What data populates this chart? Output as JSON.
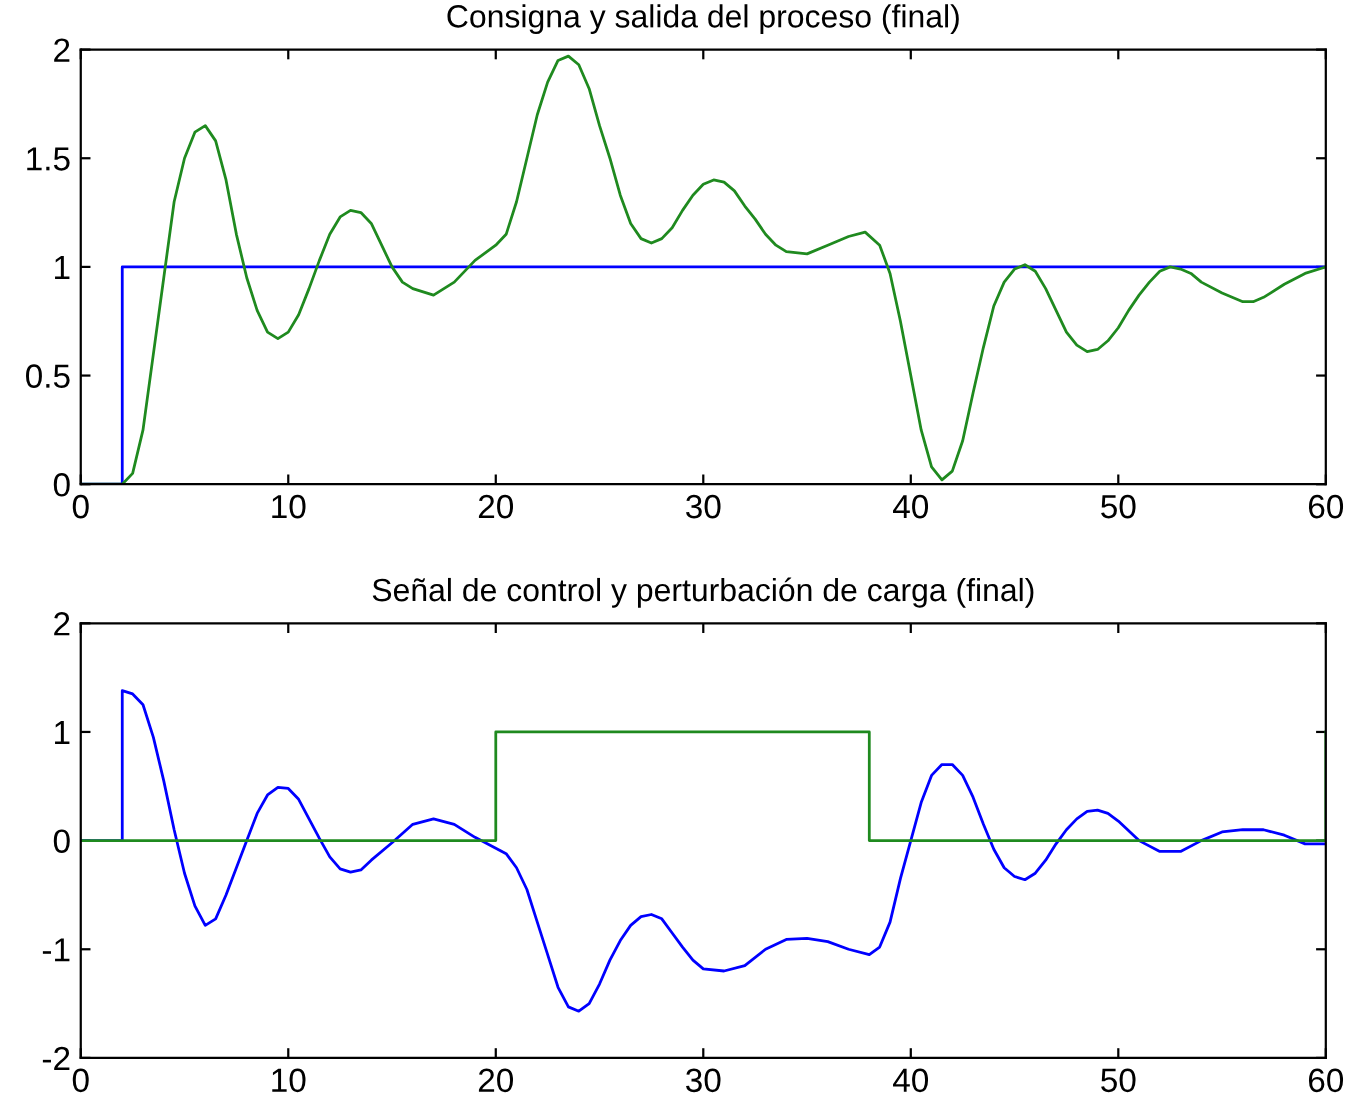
{
  "chart_data": [
    {
      "type": "line",
      "title": "Consigna y salida del proceso (final)",
      "xlim": [
        0,
        60
      ],
      "xticks": [
        0,
        10,
        20,
        30,
        40,
        50,
        60
      ],
      "ylim": [
        0,
        2
      ],
      "yticks": [
        0,
        0.5,
        1,
        1.5,
        2
      ],
      "grid": false,
      "marker": "none",
      "line_style": "solid",
      "series": [
        {
          "color": "#0000ff",
          "x": [
            0,
            2,
            2,
            60
          ],
          "values": [
            0,
            0,
            1,
            1
          ]
        },
        {
          "color": "#1f8a1f",
          "x": [
            0,
            2,
            2.5,
            3,
            3.5,
            4,
            4.5,
            5,
            5.5,
            6,
            6.5,
            7,
            7.5,
            8,
            8.5,
            9,
            9.5,
            10,
            10.5,
            11,
            11.5,
            12,
            12.5,
            13,
            13.5,
            14,
            14.5,
            15,
            15.5,
            16,
            17,
            18,
            19,
            20,
            20.5,
            21,
            21.5,
            22,
            22.5,
            23,
            23.5,
            24,
            24.5,
            25,
            25.5,
            26,
            26.5,
            27,
            27.5,
            28,
            28.5,
            29,
            29.5,
            30,
            30.5,
            31,
            31.5,
            32,
            32.5,
            33,
            33.5,
            34,
            35,
            36,
            37,
            37.8,
            38.5,
            39,
            39.5,
            40,
            40.5,
            41,
            41.5,
            42,
            42.5,
            43,
            43.5,
            44,
            44.5,
            45,
            45.5,
            46,
            46.5,
            47,
            47.5,
            48,
            48.5,
            49,
            49.5,
            50,
            50.5,
            51,
            51.5,
            52,
            52.5,
            53,
            53.5,
            54,
            55,
            56,
            56.5,
            57,
            58,
            59,
            60
          ],
          "values": [
            0,
            0,
            0.05,
            0.25,
            0.6,
            0.95,
            1.3,
            1.5,
            1.62,
            1.65,
            1.58,
            1.4,
            1.15,
            0.95,
            0.8,
            0.7,
            0.67,
            0.7,
            0.78,
            0.9,
            1.03,
            1.15,
            1.23,
            1.26,
            1.25,
            1.2,
            1.1,
            1.0,
            0.93,
            0.9,
            0.87,
            0.93,
            1.03,
            1.1,
            1.15,
            1.3,
            1.5,
            1.7,
            1.85,
            1.95,
            1.97,
            1.93,
            1.82,
            1.65,
            1.5,
            1.33,
            1.2,
            1.13,
            1.11,
            1.13,
            1.18,
            1.26,
            1.33,
            1.38,
            1.4,
            1.39,
            1.35,
            1.28,
            1.22,
            1.15,
            1.1,
            1.07,
            1.06,
            1.1,
            1.14,
            1.16,
            1.1,
            0.97,
            0.75,
            0.5,
            0.25,
            0.08,
            0.02,
            0.06,
            0.2,
            0.42,
            0.63,
            0.82,
            0.93,
            0.99,
            1.01,
            0.98,
            0.9,
            0.8,
            0.7,
            0.64,
            0.61,
            0.62,
            0.66,
            0.72,
            0.8,
            0.87,
            0.93,
            0.98,
            1.0,
            0.99,
            0.97,
            0.93,
            0.88,
            0.84,
            0.84,
            0.86,
            0.92,
            0.97,
            1.0
          ]
        }
      ]
    },
    {
      "type": "line",
      "title": "Señal de control y perturbación de carga (final)",
      "xlim": [
        0,
        60
      ],
      "xticks": [
        0,
        10,
        20,
        30,
        40,
        50,
        60
      ],
      "ylim": [
        -2,
        2
      ],
      "yticks": [
        -2,
        -1,
        0,
        1,
        2
      ],
      "grid": false,
      "marker": "none",
      "line_style": "solid",
      "series": [
        {
          "color": "#0000ff",
          "x": [
            0,
            2,
            2,
            2.5,
            3,
            3.5,
            4,
            4.5,
            5,
            5.5,
            6,
            6.5,
            7,
            7.5,
            8,
            8.5,
            9,
            9.5,
            10,
            10.5,
            11,
            11.5,
            12,
            12.5,
            13,
            13.5,
            14,
            15,
            16,
            17,
            18,
            19,
            20,
            20.5,
            21,
            21.5,
            22,
            22.5,
            23,
            23.5,
            24,
            24.5,
            25,
            25.5,
            26,
            26.5,
            27,
            27.5,
            28,
            28.5,
            29,
            29.5,
            30,
            31,
            32,
            33,
            34,
            35,
            36,
            37,
            38,
            38.5,
            39,
            39.5,
            40,
            40.5,
            41,
            41.5,
            42,
            42.5,
            43,
            43.5,
            44,
            44.5,
            45,
            45.5,
            46,
            46.5,
            47,
            47.5,
            48,
            48.5,
            49,
            49.5,
            50,
            51,
            52,
            53,
            54,
            55,
            56,
            57,
            58,
            59,
            60
          ],
          "values": [
            0,
            0,
            1.38,
            1.35,
            1.25,
            0.95,
            0.55,
            0.1,
            -0.3,
            -0.6,
            -0.78,
            -0.72,
            -0.5,
            -0.25,
            0,
            0.25,
            0.42,
            0.49,
            0.48,
            0.38,
            0.2,
            0.02,
            -0.15,
            -0.26,
            -0.29,
            -0.27,
            -0.18,
            -0.02,
            0.15,
            0.2,
            0.15,
            0.03,
            -0.07,
            -0.12,
            -0.25,
            -0.45,
            -0.75,
            -1.05,
            -1.35,
            -1.53,
            -1.57,
            -1.5,
            -1.32,
            -1.1,
            -0.92,
            -0.78,
            -0.7,
            -0.68,
            -0.72,
            -0.85,
            -0.98,
            -1.1,
            -1.18,
            -1.2,
            -1.15,
            -1.0,
            -0.91,
            -0.9,
            -0.93,
            -1.0,
            -1.05,
            -0.98,
            -0.75,
            -0.35,
            0,
            0.35,
            0.6,
            0.7,
            0.7,
            0.6,
            0.4,
            0.15,
            -0.08,
            -0.25,
            -0.33,
            -0.36,
            -0.3,
            -0.18,
            -0.03,
            0.1,
            0.2,
            0.27,
            0.28,
            0.25,
            0.18,
            0.0,
            -0.1,
            -0.1,
            0,
            0.08,
            0.1,
            0.1,
            0.05,
            -0.03,
            -0.03
          ]
        },
        {
          "color": "#1f8a1f",
          "x": [
            0,
            20,
            20,
            38,
            38,
            60,
            60
          ],
          "values": [
            0,
            0,
            1,
            1,
            0,
            0,
            1
          ]
        }
      ]
    }
  ]
}
